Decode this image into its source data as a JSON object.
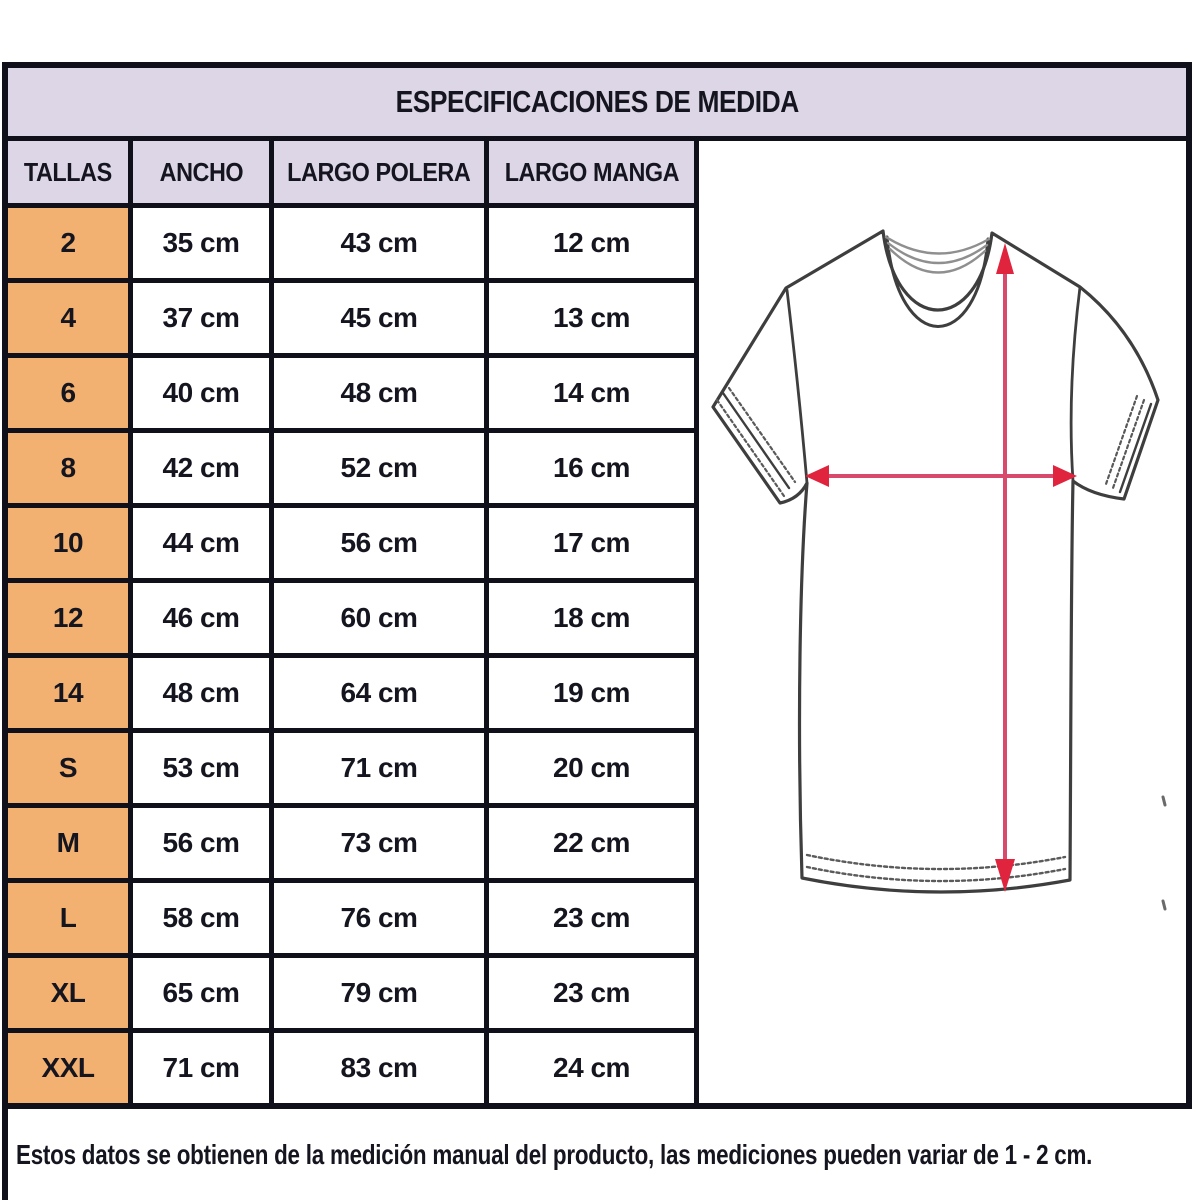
{
  "title": "ESPECIFICACIONES DE MEDIDA",
  "table": {
    "headers": [
      "TALLAS",
      "ANCHO",
      "LARGO POLERA",
      "LARGO MANGA"
    ],
    "rows": [
      [
        "2",
        "35 cm",
        "43 cm",
        "12 cm"
      ],
      [
        "4",
        "37 cm",
        "45 cm",
        "13 cm"
      ],
      [
        "6",
        "40 cm",
        "48 cm",
        "14 cm"
      ],
      [
        "8",
        "42 cm",
        "52 cm",
        "16 cm"
      ],
      [
        "10",
        "44 cm",
        "56 cm",
        "17 cm"
      ],
      [
        "12",
        "46 cm",
        "60 cm",
        "18 cm"
      ],
      [
        "14",
        "48 cm",
        "64 cm",
        "19 cm"
      ],
      [
        "S",
        "53 cm",
        "71 cm",
        "20 cm"
      ],
      [
        "M",
        "56 cm",
        "73 cm",
        "22 cm"
      ],
      [
        "L",
        "58 cm",
        "76 cm",
        "23 cm"
      ],
      [
        "XL",
        "65 cm",
        "79 cm",
        "23 cm"
      ],
      [
        "XXL",
        "71 cm",
        "83 cm",
        "24 cm"
      ]
    ]
  },
  "diagram": {
    "name": "tshirt-measurement-diagram",
    "width_arrow_meaning": "ANCHO",
    "length_arrow_meaning": "LARGO POLERA"
  },
  "footer": {
    "note": "Estos datos se obtienen de la medición manual del producto, las mediciones pueden variar de 1 - 2 cm."
  },
  "colors": {
    "header_bg": "#dcd6e6",
    "size_col_bg": "#f2b170",
    "border": "#10101a",
    "text": "#15151f",
    "arrow_shaft": "#d84a6b",
    "arrow_head": "#e0243e",
    "shirt_outline": "#3e3e3e"
  }
}
